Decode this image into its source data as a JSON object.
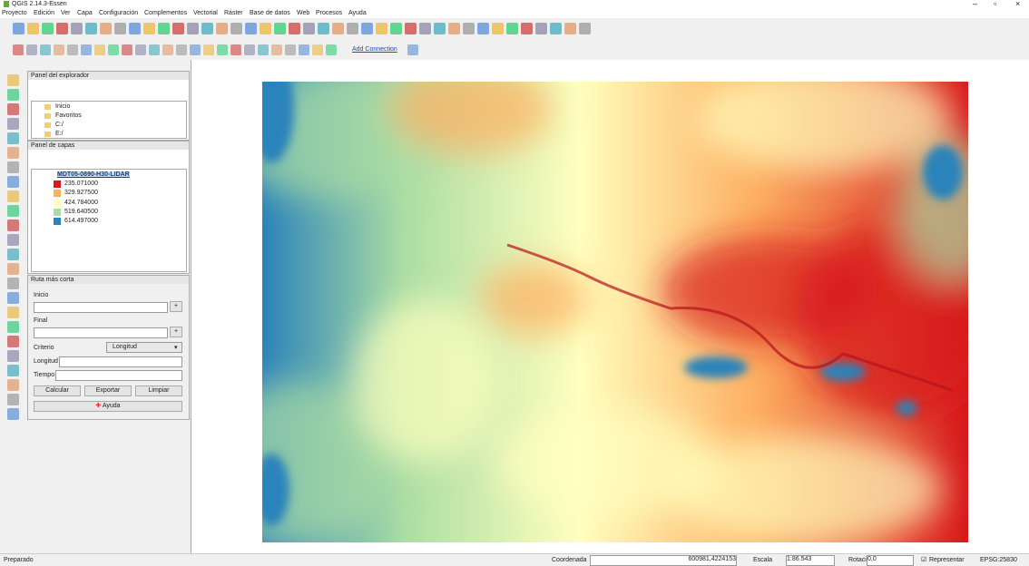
{
  "window": {
    "title": "QGIS 2.14.3-Essen"
  },
  "menu": [
    "Proyecto",
    "Edición",
    "Ver",
    "Capa",
    "Configuración",
    "Complementos",
    "Vectorial",
    "Ráster",
    "Base de datos",
    "Web",
    "Procesos",
    "Ayuda"
  ],
  "toolbar": {
    "add_connection": "Add Connection"
  },
  "browser_panel": {
    "title": "Panel del explorador",
    "items": [
      "Inicio",
      "Favoritos",
      "C:/",
      "E:/"
    ]
  },
  "layers_panel": {
    "title": "Panel de capas",
    "layer": "MDT05-0890-H30-LIDAR",
    "legend": [
      {
        "label": "235.071000",
        "color": "#d7191c"
      },
      {
        "label": "329.927500",
        "color": "#fdae61"
      },
      {
        "label": "424.784000",
        "color": "#ffffbf"
      },
      {
        "label": "519.640500",
        "color": "#abdda4"
      },
      {
        "label": "614.497000",
        "color": "#2b83ba"
      }
    ]
  },
  "route_panel": {
    "title": "Ruta más corta",
    "start_label": "Inicio",
    "end_label": "Final",
    "criterion_label": "Criterio",
    "criterion_value": "Longitud",
    "length_label": "Longitud",
    "time_label": "Tiempo",
    "buttons": [
      "Calcular",
      "Exportar",
      "Limpiar"
    ],
    "help": "Ayuda"
  },
  "status_bar": {
    "status": "Preparado",
    "coordinate_label": "Coordenada",
    "coordinate": "600981,4224153",
    "scale_label": "Escala",
    "scale": "1:86.543",
    "rotation_label": "Rotación",
    "rotation": "0,0",
    "render": "Representar",
    "crs": "EPSG:25830"
  }
}
